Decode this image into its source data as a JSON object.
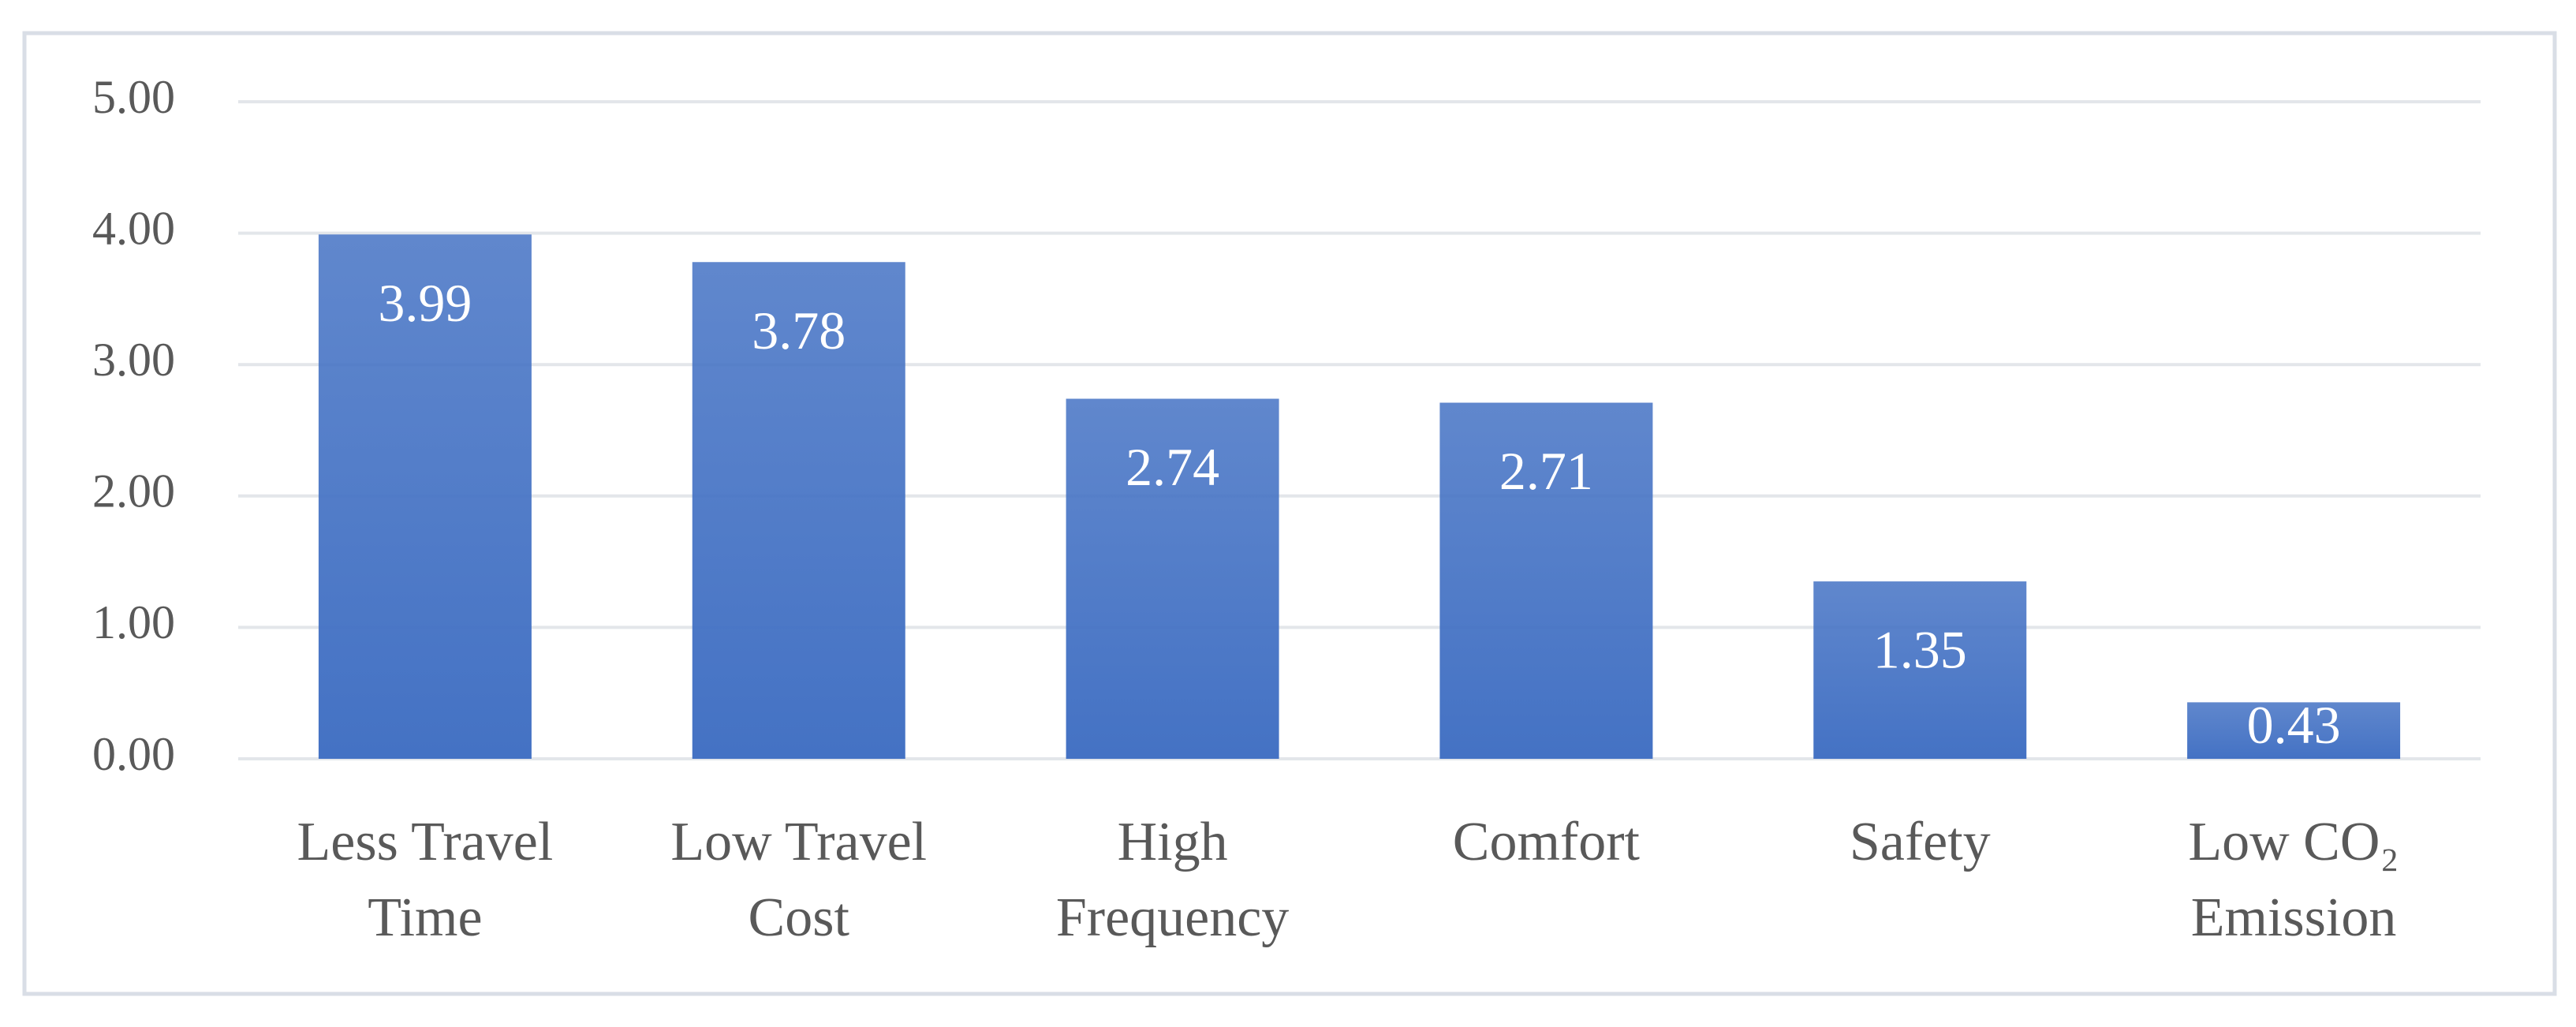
{
  "chart_data": {
    "type": "bar",
    "categories": [
      "Less Travel Time",
      "Low Travel Cost",
      "High Frequency",
      "Comfort",
      "Safety",
      "Low CO₂ Emission"
    ],
    "values": [
      3.99,
      3.78,
      2.74,
      2.71,
      1.35,
      0.43
    ],
    "color": "#4472c4",
    "ylim": [
      0,
      5
    ],
    "yticks": [
      {
        "value": 0,
        "label": "0.00"
      },
      {
        "value": 1,
        "label": "1.00"
      },
      {
        "value": 2,
        "label": "2.00"
      },
      {
        "value": 3,
        "label": "3.00"
      },
      {
        "value": 4,
        "label": "4.00"
      },
      {
        "value": 5,
        "label": "5.00"
      }
    ],
    "grid": true
  }
}
